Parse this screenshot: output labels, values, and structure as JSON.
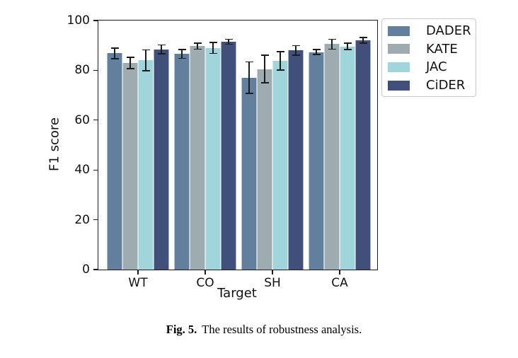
{
  "figure": {
    "caption_label": "Fig. 5.",
    "caption_text": "The results of robustness analysis."
  },
  "chart_data": {
    "type": "bar",
    "title": "",
    "xlabel": "Target",
    "ylabel": "F1 score",
    "categories": [
      "WT",
      "CO",
      "SH",
      "CA"
    ],
    "series": [
      {
        "name": "DADER",
        "color": "#637f9e",
        "values": [
          86.8,
          86.6,
          77.1,
          87.3
        ],
        "errors": [
          2.1,
          1.8,
          6.3,
          1.0
        ]
      },
      {
        "name": "KATE",
        "color": "#9eabb1",
        "values": [
          82.9,
          89.7,
          80.5,
          90.5
        ],
        "errors": [
          2.3,
          1.2,
          5.6,
          2.0
        ]
      },
      {
        "name": "JAC",
        "color": "#a1d5dc",
        "values": [
          84.0,
          89.0,
          83.8,
          89.6
        ],
        "errors": [
          4.2,
          2.2,
          3.7,
          1.3
        ]
      },
      {
        "name": "CiDER",
        "color": "#41507a",
        "values": [
          88.4,
          91.5,
          88.0,
          92.0
        ],
        "errors": [
          1.8,
          1.0,
          1.9,
          1.2
        ]
      }
    ],
    "ylim": [
      0,
      100
    ],
    "yticks": [
      0,
      20,
      40,
      60,
      80,
      100
    ],
    "grid": false,
    "error_bars": true,
    "error_bar_color": "#1c1c1c",
    "legend_position": "outside-upper-right",
    "axis_color": "#1c1c1c",
    "background_color": "#ffffff"
  }
}
